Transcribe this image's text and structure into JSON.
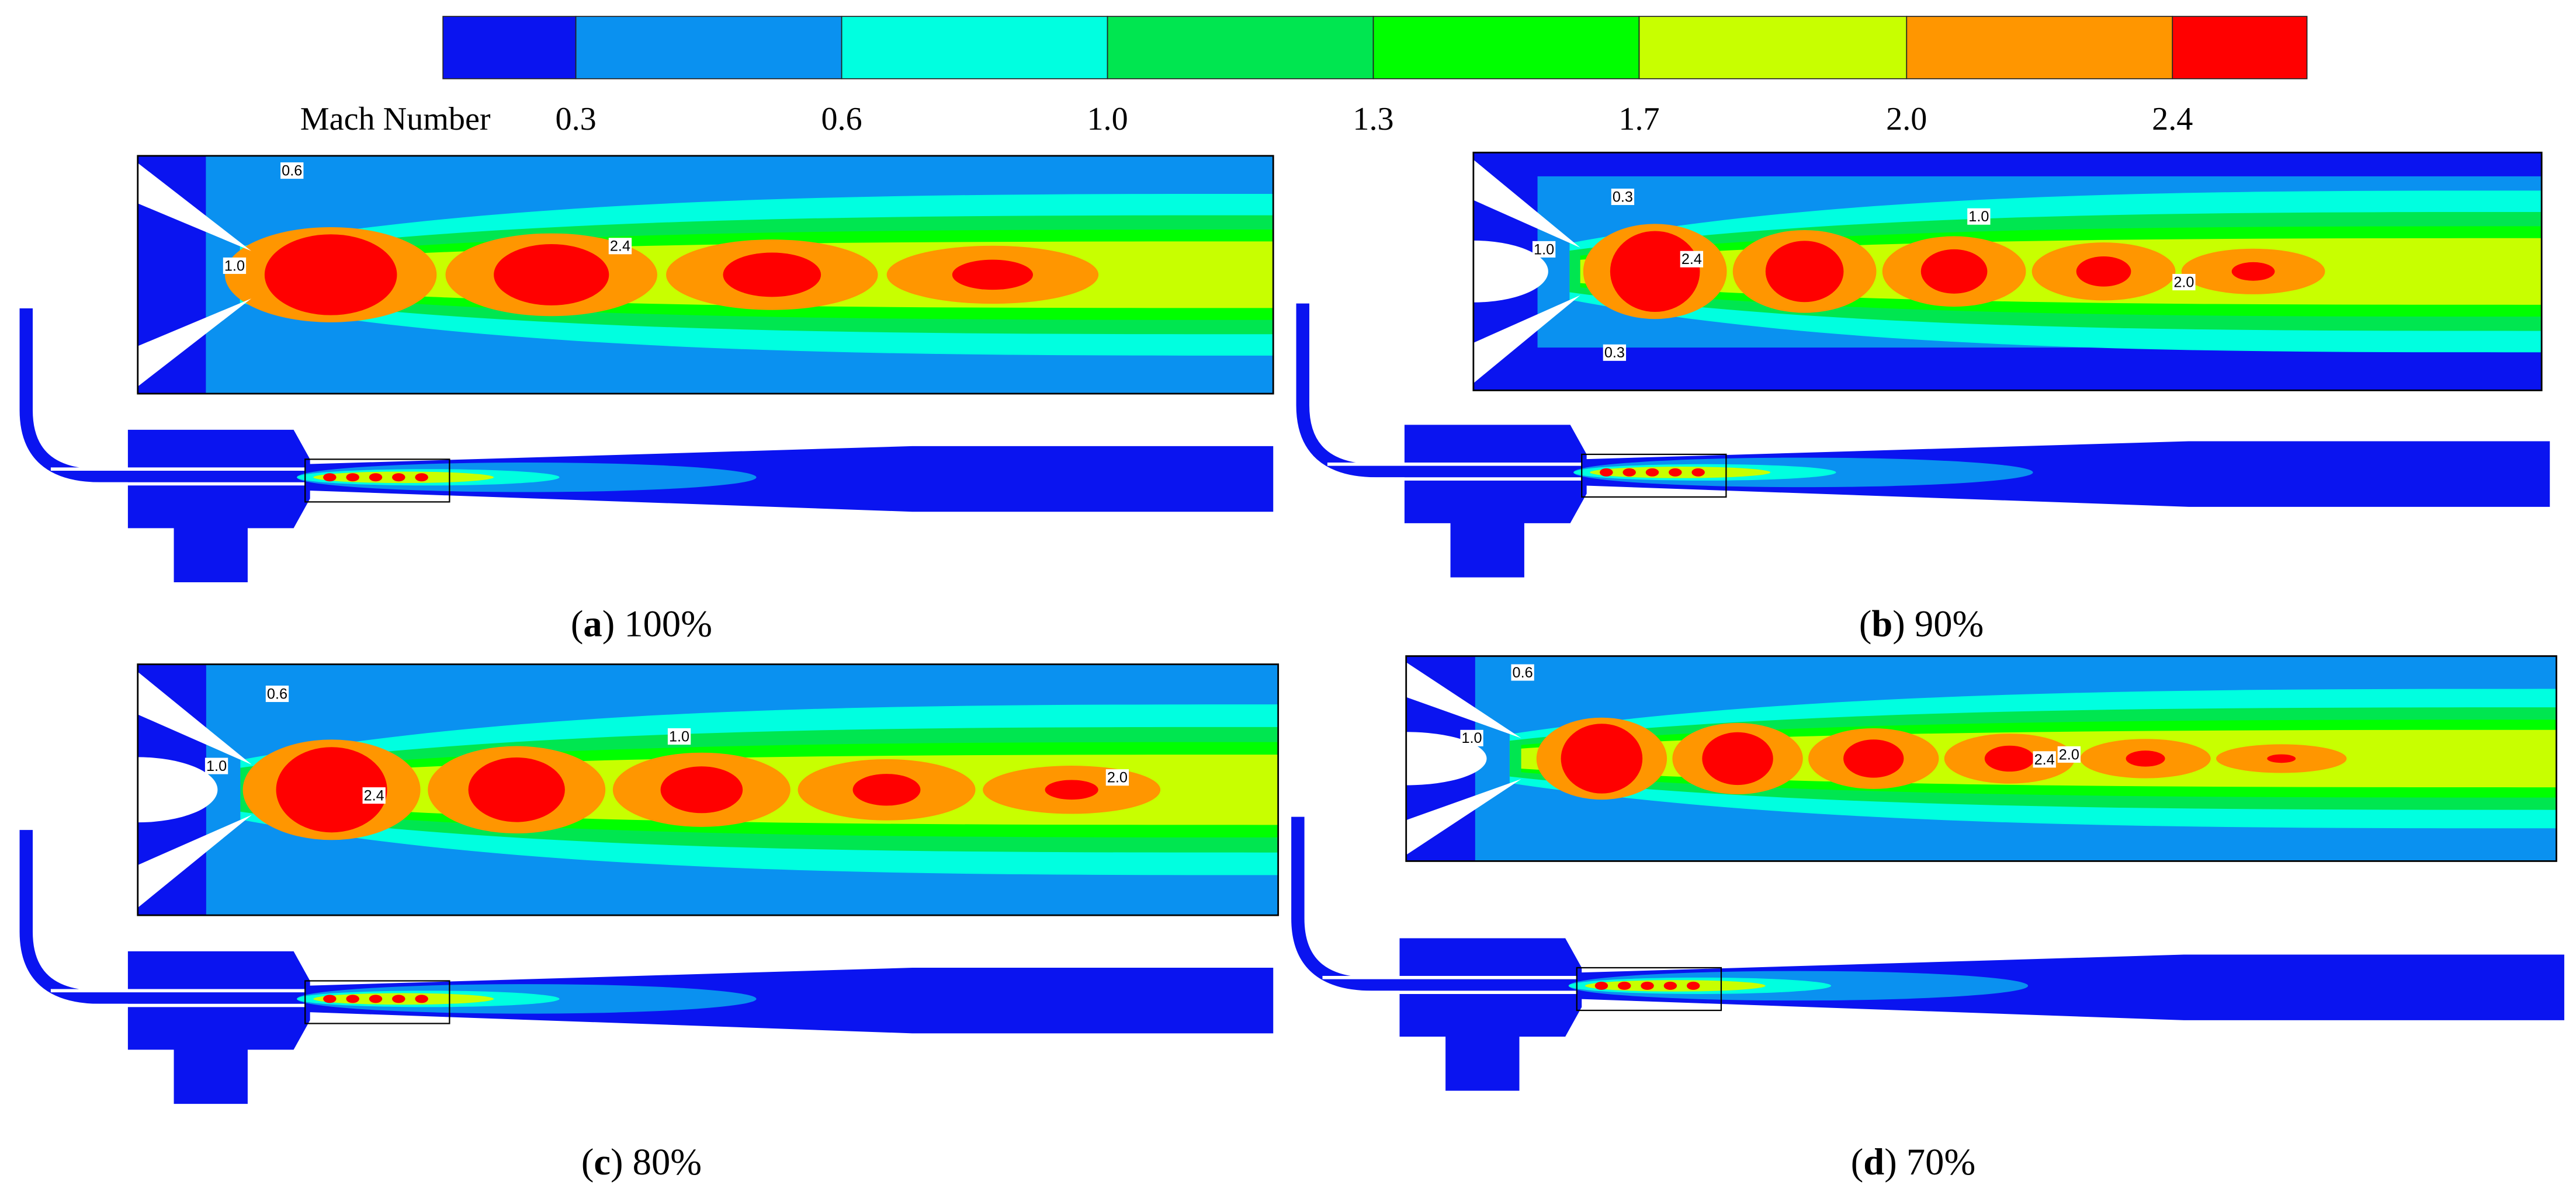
{
  "colorbar": {
    "title": "Mach Number",
    "ticks": [
      "0.3",
      "0.6",
      "1.0",
      "1.3",
      "1.7",
      "2.0",
      "2.4"
    ],
    "colors": [
      "#0a14f0",
      "#0a91f0",
      "#00ffe0",
      "#00e650",
      "#00ff00",
      "#c8ff00",
      "#ff9600",
      "#ff0000"
    ]
  },
  "panels": [
    {
      "prefix": "(",
      "letter": "a",
      "suffix": ") 100%",
      "contour_labels": [
        "0.6",
        "1.0",
        "2.4"
      ]
    },
    {
      "prefix": "(",
      "letter": "b",
      "suffix": ") 90%",
      "contour_labels": [
        "0.3",
        "1.0",
        "2.4",
        "1.0",
        "2.0",
        "0.3"
      ]
    },
    {
      "prefix": "(",
      "letter": "c",
      "suffix": ") 80%",
      "contour_labels": [
        "0.6",
        "1.0",
        "1.0",
        "2.4",
        "2.0"
      ]
    },
    {
      "prefix": "(",
      "letter": "d",
      "suffix": ") 70%",
      "contour_labels": [
        "0.6",
        "1.0",
        "2.4",
        "2.0"
      ]
    }
  ]
}
